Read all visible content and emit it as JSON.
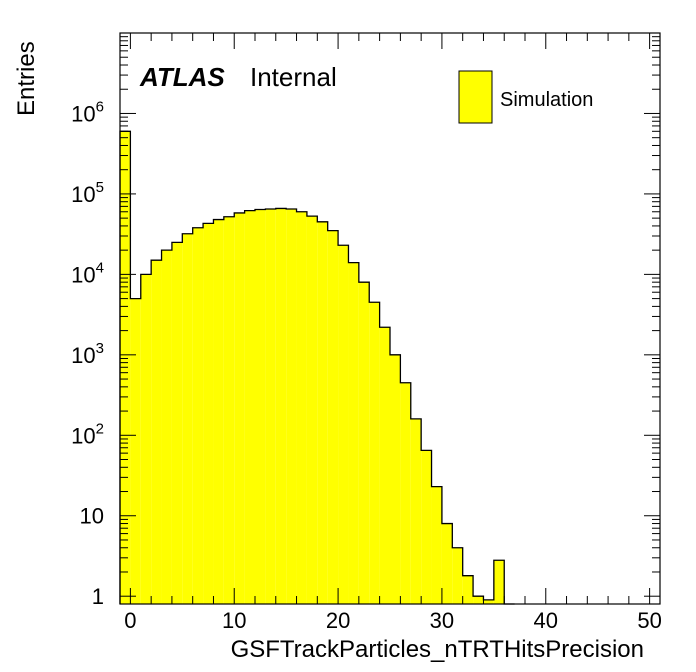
{
  "chart_data": {
    "type": "bar",
    "subtype": "histogram",
    "label_atlas": "ATLAS",
    "label_status": "Internal",
    "xlabel": "GSFTrackParticles_nTRTHitsPrecision",
    "ylabel": "Entries",
    "xlim": [
      -1,
      51
    ],
    "ylim": [
      0.8,
      10000000
    ],
    "log_y": true,
    "bin_width": 1,
    "fill_color": "#ffff00",
    "line_color": "#000000",
    "legend_position": "top-right",
    "x_ticks": [
      0,
      10,
      20,
      30,
      40,
      50
    ],
    "x_tick_labels": [
      "0",
      "10",
      "20",
      "30",
      "40",
      "50"
    ],
    "y_ticks": [
      {
        "value": 1,
        "base": "1",
        "exp": ""
      },
      {
        "value": 10,
        "base": "10",
        "exp": ""
      },
      {
        "value": 100,
        "base": "10",
        "exp": "2"
      },
      {
        "value": 1000,
        "base": "10",
        "exp": "3"
      },
      {
        "value": 10000,
        "base": "10",
        "exp": "4"
      },
      {
        "value": 100000,
        "base": "10",
        "exp": "5"
      },
      {
        "value": 1000000,
        "base": "10",
        "exp": "6"
      }
    ],
    "series": [
      {
        "name": "Simulation",
        "bin_edges": [
          -1,
          0,
          1,
          2,
          3,
          4,
          5,
          6,
          7,
          8,
          9,
          10,
          11,
          12,
          13,
          14,
          15,
          16,
          17,
          18,
          19,
          20,
          21,
          22,
          23,
          24,
          25,
          26,
          27,
          28,
          29,
          30,
          31,
          32,
          33,
          34,
          35,
          36,
          37
        ],
        "values": [
          600000,
          5000,
          10000,
          15000,
          20000,
          25000,
          32000,
          38000,
          43000,
          48000,
          52000,
          58000,
          62000,
          64000,
          65000,
          66000,
          65000,
          60000,
          53000,
          45000,
          35000,
          23000,
          14000,
          8000,
          4500,
          2200,
          1000,
          450,
          160,
          65,
          23,
          8,
          4,
          1.8,
          1,
          0.9,
          2.8,
          0
        ]
      }
    ]
  }
}
